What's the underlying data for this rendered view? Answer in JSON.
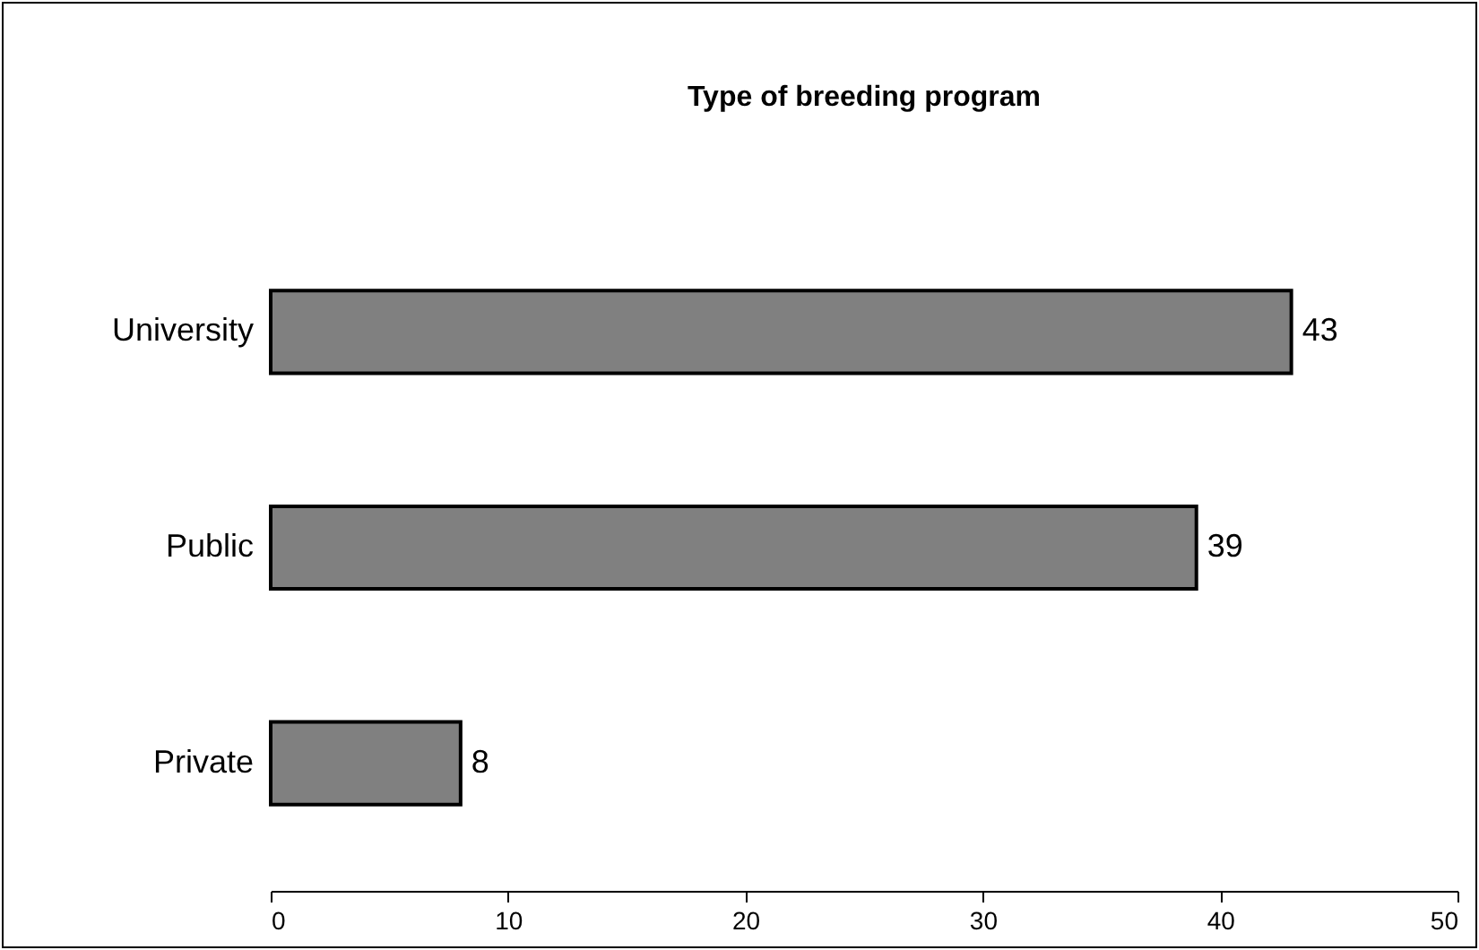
{
  "chart_data": {
    "type": "bar",
    "orientation": "horizontal",
    "title": "Type of breeding program",
    "categories": [
      "University",
      "Public",
      "Private"
    ],
    "values": [
      43,
      39,
      8
    ],
    "color": "#808080",
    "data_labels": true,
    "xlim": [
      0,
      50
    ],
    "xticks": [
      0,
      10,
      20,
      30,
      40,
      50
    ],
    "grid": false
  }
}
